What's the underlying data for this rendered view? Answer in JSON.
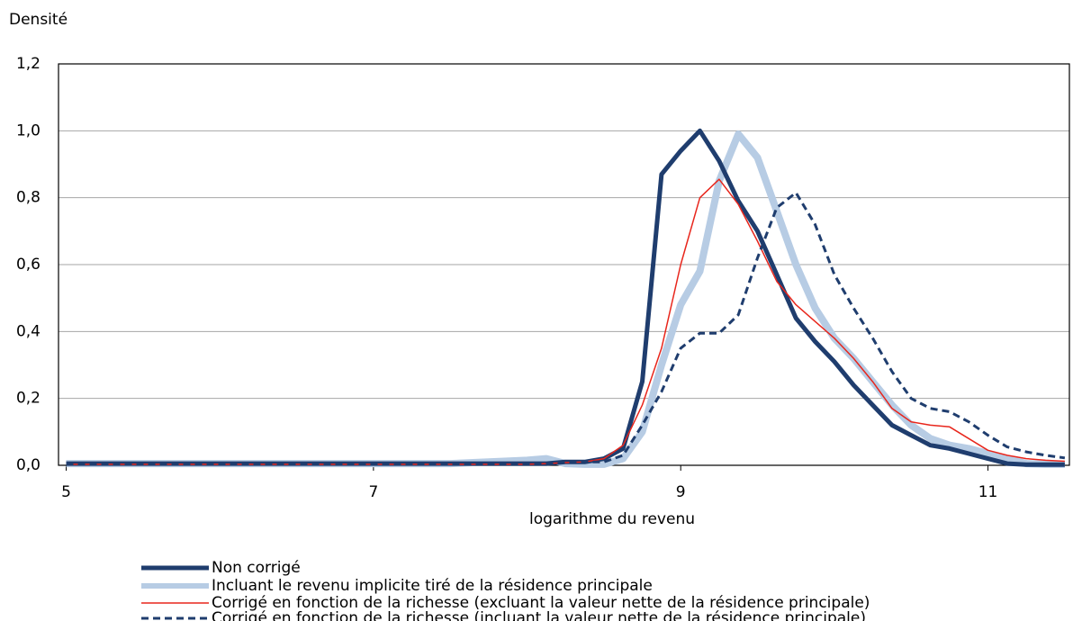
{
  "chart_data": {
    "type": "line",
    "y_label": "Densité",
    "x_label": "logarithme du revenu",
    "x": [
      5,
      6,
      7,
      7.5,
      8,
      8.125,
      8.25,
      8.375,
      8.5,
      8.625,
      8.75,
      8.875,
      9,
      9.125,
      9.25,
      9.375,
      9.5,
      9.625,
      9.75,
      9.875,
      10,
      10.125,
      10.25,
      10.375,
      10.5,
      10.625,
      10.75,
      10.875,
      11,
      11.125,
      11.25,
      11.375,
      11.5
    ],
    "xlim": [
      4.95,
      11.53
    ],
    "xticks": [
      5,
      7,
      9,
      11
    ],
    "ylim": [
      0,
      1.2
    ],
    "yticks": [
      {
        "value": 0,
        "label": "0,0"
      },
      {
        "value": 0.2,
        "label": "0,2"
      },
      {
        "value": 0.4,
        "label": "0,4"
      },
      {
        "value": 0.6,
        "label": "0,6"
      },
      {
        "value": 0.8,
        "label": "0,8"
      },
      {
        "value": 1.0,
        "label": "1,0"
      },
      {
        "value": 1.2,
        "label": "1,2"
      }
    ],
    "grid": true,
    "series": [
      {
        "name": "Non corrigé",
        "color": "#1f3d6e",
        "style": "solid",
        "width": 5,
        "values": [
          0.005,
          0.005,
          0.005,
          0.005,
          0.005,
          0.005,
          0.01,
          0.01,
          0.02,
          0.05,
          0.25,
          0.87,
          0.94,
          1.0,
          0.91,
          0.79,
          0.7,
          0.57,
          0.44,
          0.37,
          0.31,
          0.24,
          0.18,
          0.12,
          0.09,
          0.06,
          0.05,
          0.035,
          0.02,
          0.005,
          0.002,
          0.002,
          0.002
        ]
      },
      {
        "name": "Incluant le revenu implicite tiré de la résidence principale",
        "color": "#b7cce4",
        "style": "solid",
        "width": 8,
        "values": [
          0.005,
          0.005,
          0.005,
          0.005,
          0.015,
          0.02,
          0.005,
          0.003,
          0.003,
          0.02,
          0.1,
          0.3,
          0.48,
          0.58,
          0.85,
          0.99,
          0.92,
          0.76,
          0.6,
          0.47,
          0.38,
          0.32,
          0.25,
          0.18,
          0.12,
          0.08,
          0.06,
          0.05,
          0.035,
          0.02,
          0.005,
          0.003,
          0.003
        ]
      },
      {
        "name": "Corrigé en fonction de la richesse (excluant la valeur nette de la résidence principale)",
        "color": "#e8261c",
        "style": "solid",
        "width": 1.5,
        "values": [
          0.003,
          0.003,
          0.003,
          0.003,
          0.003,
          0.005,
          0.008,
          0.01,
          0.02,
          0.06,
          0.18,
          0.35,
          0.6,
          0.8,
          0.855,
          0.78,
          0.67,
          0.55,
          0.48,
          0.43,
          0.38,
          0.32,
          0.25,
          0.17,
          0.13,
          0.12,
          0.115,
          0.08,
          0.045,
          0.03,
          0.02,
          0.015,
          0.012
        ]
      },
      {
        "name": "Corrigé en fonction de la richesse (incluant la valeur nette de la résidence principale)",
        "color": "#1f3d6e",
        "style": "dashed",
        "width": 3,
        "values": [
          0.003,
          0.003,
          0.003,
          0.003,
          0.003,
          0.005,
          0.008,
          0.01,
          0.01,
          0.03,
          0.12,
          0.22,
          0.35,
          0.395,
          0.395,
          0.45,
          0.62,
          0.77,
          0.815,
          0.72,
          0.57,
          0.47,
          0.38,
          0.28,
          0.2,
          0.17,
          0.16,
          0.13,
          0.09,
          0.055,
          0.04,
          0.03,
          0.022
        ]
      }
    ]
  }
}
